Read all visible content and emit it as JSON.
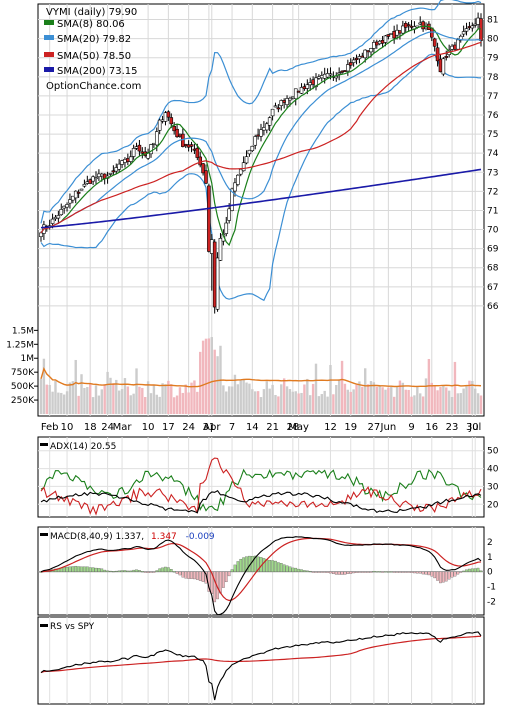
{
  "chart_data": [
    {
      "type": "line",
      "panel": "price",
      "title": "VYMI (daily) 79.90",
      "watermark": "OptionChance.com",
      "legend_placement": "top-left",
      "y_ticks": [
        66,
        67,
        68,
        69,
        70,
        71,
        72,
        73,
        74,
        75,
        76,
        77,
        78,
        79,
        80,
        81
      ],
      "ylim": [
        65,
        81.5
      ],
      "x_labels": [
        "Feb",
        "10",
        "18",
        "24",
        "Mar",
        "10",
        "17",
        "24",
        "31",
        "Apr",
        "7",
        "14",
        "21",
        "28",
        "May",
        "12",
        "19",
        "27",
        "Jun",
        "9",
        "16",
        "23",
        "30",
        "Jul"
      ],
      "x_label_days": [
        3,
        9,
        17,
        23,
        28,
        37,
        44,
        51,
        58,
        59,
        66,
        73,
        80,
        87,
        89,
        100,
        107,
        115,
        120,
        128,
        135,
        142,
        149,
        150
      ],
      "close_anchors": [
        [
          0,
          70.0
        ],
        [
          3,
          70.3
        ],
        [
          6,
          70.8
        ],
        [
          9,
          71.3
        ],
        [
          12,
          71.9
        ],
        [
          15,
          72.3
        ],
        [
          18,
          72.7
        ],
        [
          21,
          72.8
        ],
        [
          24,
          72.8
        ],
        [
          27,
          73.4
        ],
        [
          30,
          73.6
        ],
        [
          33,
          74.4
        ],
        [
          36,
          73.9
        ],
        [
          39,
          74.5
        ],
        [
          41,
          75.6
        ],
        [
          43,
          76.2
        ],
        [
          46,
          75.2
        ],
        [
          49,
          74.5
        ],
        [
          52,
          74.3
        ],
        [
          55,
          73.5
        ],
        [
          57,
          72.5
        ],
        [
          58,
          68.9
        ],
        [
          59,
          69.5
        ],
        [
          60,
          66.0
        ],
        [
          61,
          68.5
        ],
        [
          62,
          69.5
        ],
        [
          64,
          70.2
        ],
        [
          66,
          72.0
        ],
        [
          68,
          72.8
        ],
        [
          70,
          73.5
        ],
        [
          72,
          74.0
        ],
        [
          74,
          74.8
        ],
        [
          76,
          75.2
        ],
        [
          78,
          75.6
        ],
        [
          80,
          76.2
        ],
        [
          82,
          76.5
        ],
        [
          84,
          76.8
        ],
        [
          86,
          77.0
        ],
        [
          89,
          77.3
        ],
        [
          92,
          77.6
        ],
        [
          95,
          77.8
        ],
        [
          98,
          78.0
        ],
        [
          101,
          78.1
        ],
        [
          104,
          78.4
        ],
        [
          107,
          78.7
        ],
        [
          110,
          79.0
        ],
        [
          113,
          79.4
        ],
        [
          116,
          79.8
        ],
        [
          119,
          80.0
        ],
        [
          122,
          80.2
        ],
        [
          125,
          80.5
        ],
        [
          128,
          80.7
        ],
        [
          131,
          80.8
        ],
        [
          134,
          80.4
        ],
        [
          136,
          79.6
        ],
        [
          138,
          78.4
        ],
        [
          140,
          79.2
        ],
        [
          143,
          79.6
        ],
        [
          146,
          80.2
        ],
        [
          149,
          80.7
        ],
        [
          151,
          81.0
        ],
        [
          152,
          79.9
        ]
      ],
      "series": [
        {
          "name": "SMA(8) 80.06",
          "color": "#1a7f1a"
        },
        {
          "name": "SMA(20) 79.82",
          "color": "#3c8fd4"
        },
        {
          "name": "SMA(50) 78.50",
          "color": "#cc2222"
        },
        {
          "name": "SMA(200) 73.15",
          "color": "#1a1aa8"
        }
      ],
      "up_color": "#9fd98a",
      "down_color": "#cc2222"
    },
    {
      "type": "bar",
      "panel": "volume",
      "y_ticks": [
        "1.5M",
        "1.25M",
        "1M",
        "750K",
        "500K",
        "250K"
      ],
      "y_values": [
        1500000,
        1250000,
        1000000,
        750000,
        500000,
        250000
      ],
      "ylim": [
        0,
        1650000
      ]
    },
    {
      "type": "line",
      "panel": "adx",
      "legend": "ADX(14) 20.55",
      "y_ticks": [
        20,
        30,
        40,
        50
      ],
      "ylim": [
        14,
        56
      ]
    },
    {
      "type": "line",
      "panel": "macd",
      "legend_prefix": "MACD(8,40,9) 1.337,",
      "signal": "1.347",
      "histogram": "-0.009",
      "y_ticks": [
        2,
        1,
        0,
        -1,
        -2
      ],
      "ylim": [
        -2.7,
        2.8
      ]
    },
    {
      "type": "line",
      "panel": "relative-strength",
      "legend": "RS vs SPY"
    }
  ]
}
